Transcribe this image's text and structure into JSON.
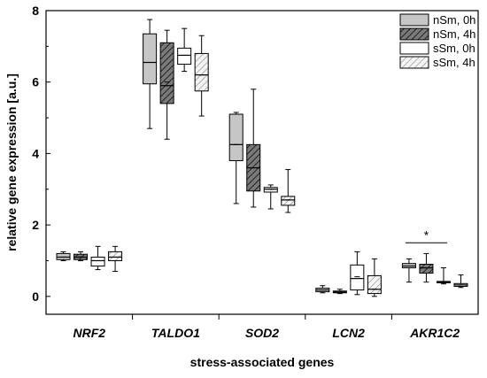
{
  "chart_data": {
    "type": "box",
    "xlabel": "stress-associated genes",
    "ylabel": "relative gene expression [a.u.]",
    "ylim": [
      -0.5,
      8
    ],
    "yticks": [
      0,
      2,
      4,
      6,
      8
    ],
    "categories": [
      "NRF2",
      "TALDO1",
      "SOD2",
      "LCN2",
      "AKR1C2"
    ],
    "legend_position": "top-right",
    "significance": [
      {
        "category": "AKR1C2",
        "from_series": 0,
        "to_series": 2,
        "label": "*"
      }
    ],
    "series": [
      {
        "name": "nSm, 0h",
        "fill": "#c6c6c6",
        "pattern": "solid",
        "boxes": [
          {
            "whisker_low": 1.0,
            "q1": 1.03,
            "median": 1.1,
            "mean": 1.1,
            "q3": 1.2,
            "whisker_high": 1.25
          },
          {
            "whisker_low": 4.7,
            "q1": 5.95,
            "median": 6.55,
            "mean": 6.55,
            "q3": 7.35,
            "whisker_high": 7.75
          },
          {
            "whisker_low": 2.6,
            "q1": 3.8,
            "median": 4.25,
            "mean": 4.25,
            "q3": 5.1,
            "whisker_high": 5.15
          },
          {
            "whisker_low": 0.1,
            "q1": 0.13,
            "median": 0.18,
            "mean": 0.18,
            "q3": 0.23,
            "whisker_high": 0.3
          },
          {
            "whisker_low": 0.4,
            "q1": 0.8,
            "median": 0.85,
            "mean": 0.85,
            "q3": 0.92,
            "whisker_high": 1.05
          }
        ]
      },
      {
        "name": "nSm, 4h",
        "fill": "#6e6e6e",
        "pattern": "hatch",
        "boxes": [
          {
            "whisker_low": 1.0,
            "q1": 1.03,
            "median": 1.1,
            "mean": 1.1,
            "q3": 1.18,
            "whisker_high": 1.25
          },
          {
            "whisker_low": 4.4,
            "q1": 5.4,
            "median": 5.9,
            "mean": 6.0,
            "q3": 7.1,
            "whisker_high": 7.45
          },
          {
            "whisker_low": 2.5,
            "q1": 2.95,
            "median": 3.6,
            "mean": 3.6,
            "q3": 4.25,
            "whisker_high": 5.8
          },
          {
            "whisker_low": 0.08,
            "q1": 0.1,
            "median": 0.12,
            "mean": 0.12,
            "q3": 0.15,
            "whisker_high": 0.2
          },
          {
            "whisker_low": 0.4,
            "q1": 0.65,
            "median": 0.8,
            "mean": 0.8,
            "q3": 0.9,
            "whisker_high": 1.2
          }
        ]
      },
      {
        "name": "sSm, 0h",
        "fill": "#ffffff",
        "pattern": "solid",
        "boxes": [
          {
            "whisker_low": 0.75,
            "q1": 0.85,
            "median": 1.0,
            "mean": 1.0,
            "q3": 1.1,
            "whisker_high": 1.4
          },
          {
            "whisker_low": 6.3,
            "q1": 6.5,
            "median": 6.75,
            "mean": 6.75,
            "q3": 6.95,
            "whisker_high": 7.5
          },
          {
            "whisker_low": 2.45,
            "q1": 2.92,
            "median": 3.0,
            "mean": 3.0,
            "q3": 3.05,
            "whisker_high": 3.12
          },
          {
            "whisker_low": 0.05,
            "q1": 0.18,
            "median": 0.5,
            "mean": 0.55,
            "q3": 0.88,
            "whisker_high": 1.25
          },
          {
            "whisker_low": 0.35,
            "q1": 0.38,
            "median": 0.4,
            "mean": 0.4,
            "q3": 0.42,
            "whisker_high": 0.8
          }
        ]
      },
      {
        "name": "sSm, 4h",
        "fill": "#e8e8e8",
        "pattern": "hatch",
        "boxes": [
          {
            "whisker_low": 0.7,
            "q1": 1.0,
            "median": 1.1,
            "mean": 1.1,
            "q3": 1.25,
            "whisker_high": 1.4
          },
          {
            "whisker_low": 5.05,
            "q1": 5.75,
            "median": 6.2,
            "mean": 6.2,
            "q3": 6.8,
            "whisker_high": 7.3
          },
          {
            "whisker_low": 2.35,
            "q1": 2.55,
            "median": 2.7,
            "mean": 2.7,
            "q3": 2.8,
            "whisker_high": 3.55
          },
          {
            "whisker_low": 0.0,
            "q1": 0.08,
            "median": 0.2,
            "mean": 0.2,
            "q3": 0.58,
            "whisker_high": 1.05
          },
          {
            "whisker_low": 0.25,
            "q1": 0.28,
            "median": 0.32,
            "mean": 0.32,
            "q3": 0.36,
            "whisker_high": 0.6
          }
        ]
      }
    ]
  }
}
